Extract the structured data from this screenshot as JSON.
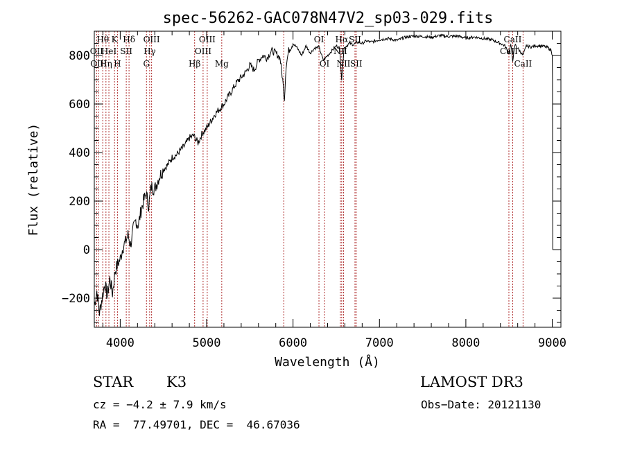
{
  "chart_data": {
    "type": "line",
    "title": "spec-56262-GAC078N47V2_sp03-029.fits",
    "xlabel": "Wavelength (Å)",
    "ylabel": "Flux (relative)",
    "xlim": [
      3700,
      9100
    ],
    "ylim": [
      -320,
      900
    ],
    "xticks": [
      {
        "value": 4000,
        "label": "4000"
      },
      {
        "value": 5000,
        "label": "5000"
      },
      {
        "value": 6000,
        "label": "6000"
      },
      {
        "value": 7000,
        "label": "7000"
      },
      {
        "value": 8000,
        "label": "8000"
      },
      {
        "value": 9000,
        "label": "9000"
      }
    ],
    "yticks": [
      {
        "value": -200,
        "label": "−200"
      },
      {
        "value": 0,
        "label": "0"
      },
      {
        "value": 200,
        "label": "200"
      },
      {
        "value": 400,
        "label": "400"
      },
      {
        "value": 600,
        "label": "600"
      },
      {
        "value": 800,
        "label": "800"
      }
    ],
    "series": [
      {
        "name": "spectrum",
        "color": "#000000",
        "x": [
          3700,
          3730,
          3760,
          3790,
          3820,
          3850,
          3880,
          3910,
          3940,
          3970,
          4000,
          4030,
          4060,
          4090,
          4120,
          4150,
          4180,
          4210,
          4240,
          4270,
          4300,
          4330,
          4360,
          4400,
          4450,
          4500,
          4550,
          4600,
          4650,
          4700,
          4750,
          4800,
          4850,
          4900,
          4950,
          5000,
          5050,
          5100,
          5150,
          5200,
          5250,
          5300,
          5350,
          5400,
          5450,
          5500,
          5550,
          5600,
          5650,
          5700,
          5750,
          5800,
          5850,
          5880,
          5900,
          5920,
          5950,
          6000,
          6050,
          6100,
          6150,
          6200,
          6250,
          6300,
          6350,
          6400,
          6450,
          6500,
          6540,
          6563,
          6590,
          6650,
          6700,
          6750,
          6800,
          6850,
          6900,
          6950,
          7000,
          7100,
          7200,
          7300,
          7400,
          7500,
          7600,
          7700,
          7800,
          7900,
          8000,
          8100,
          8200,
          8300,
          8400,
          8450,
          8498,
          8520,
          8542,
          8570,
          8600,
          8662,
          8700,
          8750,
          8800,
          8850,
          8900,
          8950,
          8990,
          9000,
          9003,
          9005
        ],
        "y": [
          -230,
          -170,
          -260,
          -200,
          -140,
          -190,
          -120,
          -180,
          -90,
          -60,
          -40,
          10,
          30,
          60,
          20,
          80,
          120,
          100,
          160,
          200,
          230,
          180,
          260,
          250,
          300,
          330,
          350,
          380,
          390,
          410,
          430,
          460,
          470,
          440,
          480,
          500,
          530,
          560,
          580,
          600,
          630,
          660,
          690,
          710,
          730,
          760,
          740,
          780,
          800,
          790,
          820,
          810,
          790,
          700,
          620,
          760,
          820,
          850,
          830,
          800,
          840,
          810,
          830,
          835,
          780,
          800,
          820,
          840,
          830,
          700,
          830,
          850,
          845,
          855,
          850,
          860,
          855,
          860,
          865,
          870,
          862,
          875,
          880,
          878,
          875,
          882,
          878,
          880,
          872,
          876,
          870,
          865,
          850,
          840,
          810,
          845,
          780,
          845,
          830,
          800,
          840,
          835,
          840,
          840,
          838,
          832,
          820,
          800,
          700,
          0
        ]
      }
    ],
    "lines": [
      {
        "wavelength": 3727,
        "label": "OII",
        "row": 1
      },
      {
        "wavelength": 3750,
        "label": "OIII",
        "row": 2
      },
      {
        "wavelength": 3798,
        "label": "Hθ",
        "row": 0
      },
      {
        "wavelength": 3835,
        "label": "Hη",
        "row": 2
      },
      {
        "wavelength": 3869,
        "label": "HeI",
        "row": 1
      },
      {
        "wavelength": 3934,
        "label": "K",
        "row": 0
      },
      {
        "wavelength": 3968,
        "label": "H",
        "row": 2
      },
      {
        "wavelength": 4070,
        "label": "SII",
        "row": 1
      },
      {
        "wavelength": 4102,
        "label": "Hδ",
        "row": 0
      },
      {
        "wavelength": 4304,
        "label": "G",
        "row": 2
      },
      {
        "wavelength": 4341,
        "label": "Hγ",
        "row": 1
      },
      {
        "wavelength": 4363,
        "label": "OIII",
        "row": 0
      },
      {
        "wavelength": 4861,
        "label": "Hβ",
        "row": 2
      },
      {
        "wavelength": 4959,
        "label": "OIII",
        "row": 1
      },
      {
        "wavelength": 5007,
        "label": "OIII",
        "row": 0
      },
      {
        "wavelength": 5175,
        "label": "Mg",
        "row": 2
      },
      {
        "wavelength": 5893,
        "label": "",
        "row": -1
      },
      {
        "wavelength": 6300,
        "label": "OI",
        "row": 0
      },
      {
        "wavelength": 6364,
        "label": "OI",
        "row": 2
      },
      {
        "wavelength": 6548,
        "label": "NII",
        "row": 1
      },
      {
        "wavelength": 6563,
        "label": "Hα",
        "row": 0
      },
      {
        "wavelength": 6584,
        "label": "NII",
        "row": 2
      },
      {
        "wavelength": 6717,
        "label": "SII",
        "row": 0
      },
      {
        "wavelength": 6731,
        "label": "SII",
        "row": 2
      },
      {
        "wavelength": 8498,
        "label": "CaII",
        "row": 1
      },
      {
        "wavelength": 8542,
        "label": "CaII",
        "row": 0
      },
      {
        "wavelength": 8662,
        "label": "CaII",
        "row": 2
      }
    ]
  },
  "info": {
    "object_class": "STAR",
    "subclass": "K3",
    "survey": "LAMOST DR3",
    "redshift_text": "cz = −4.2 ± 7.9 km/s",
    "obs_date": "Obs−Date: 20121130",
    "coords": "RA =  77.49701, DEC =  46.67036"
  },
  "colors": {
    "line_marker": "#b03030",
    "spectrum": "#000000",
    "axes": "#000000"
  }
}
